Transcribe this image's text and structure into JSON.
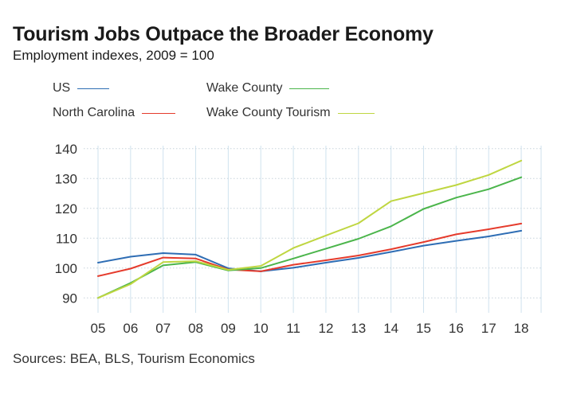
{
  "chart_data": {
    "type": "line",
    "title": "Tourism Jobs Outpace the Broader Economy",
    "subtitle": "Employment indexes, 2009 = 100",
    "x": [
      "05",
      "06",
      "07",
      "08",
      "09",
      "10",
      "11",
      "12",
      "13",
      "14",
      "15",
      "16",
      "17",
      "18"
    ],
    "ylim": [
      85,
      141
    ],
    "yticks": [
      90,
      100,
      110,
      120,
      130,
      140
    ],
    "grid": true,
    "legend_position": "top",
    "series": [
      {
        "name": "US",
        "color": "#2e6db4",
        "values": [
          101.8,
          103.8,
          105.0,
          104.5,
          99.9,
          98.9,
          100.1,
          101.8,
          103.4,
          105.4,
          107.5,
          109.1,
          110.6,
          112.5
        ]
      },
      {
        "name": "North Carolina",
        "color": "#e53b2c",
        "values": [
          97.3,
          99.8,
          103.5,
          103.2,
          99.5,
          98.9,
          101.1,
          102.6,
          104.2,
          106.3,
          108.7,
          111.3,
          113.0,
          114.9
        ]
      },
      {
        "name": "Wake County",
        "color": "#4bb54b",
        "values": [
          90.0,
          95.0,
          100.9,
          102.0,
          99.2,
          100.0,
          103.2,
          106.5,
          109.8,
          114.0,
          119.8,
          123.6,
          126.4,
          130.4
        ]
      },
      {
        "name": "Wake County Tourism",
        "color": "#bfd641",
        "values": [
          90.0,
          94.6,
          102.0,
          102.3,
          99.4,
          100.7,
          106.7,
          110.9,
          115.0,
          122.4,
          125.1,
          127.8,
          131.2,
          136.0
        ]
      }
    ],
    "source": "Sources: BEA, BLS, Tourism Economics"
  }
}
